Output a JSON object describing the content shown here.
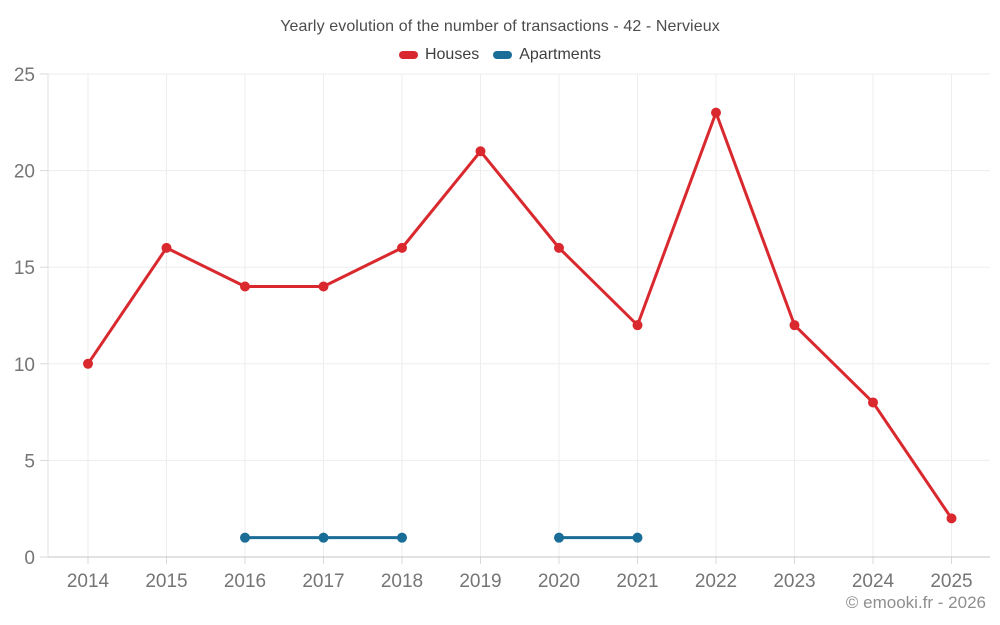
{
  "header": {
    "title": "Yearly evolution of the number of transactions - 42 - Nervieux"
  },
  "footer": {
    "copyright": "© emooki.fr - 2026"
  },
  "colors": {
    "grid": "#ededed",
    "axis_bottom": "#c4c4c4",
    "axis_left": "#e0e0e0",
    "tick": "#d9d9d9",
    "tick_label": "#757575"
  },
  "chart_data": {
    "type": "line",
    "title": "Yearly evolution of the number of transactions - 42 - Nervieux",
    "categories": [
      "2014",
      "2015",
      "2016",
      "2017",
      "2018",
      "2019",
      "2020",
      "2021",
      "2022",
      "2023",
      "2024",
      "2025"
    ],
    "series": [
      {
        "name": "Houses",
        "color": "#d9292e",
        "values": [
          10,
          16,
          14,
          14,
          16,
          21,
          16,
          12,
          23,
          12,
          8,
          2
        ]
      },
      {
        "name": "Apartments",
        "color": "#1a6d96",
        "values": [
          null,
          null,
          1,
          1,
          1,
          null,
          1,
          1,
          null,
          null,
          null,
          null
        ]
      }
    ],
    "xlabel": "",
    "ylabel": "",
    "ylim": [
      0,
      25
    ],
    "yticks": [
      0,
      5,
      10,
      15,
      20,
      25
    ],
    "grid": true,
    "legend_position": "top",
    "point_markers": true
  }
}
